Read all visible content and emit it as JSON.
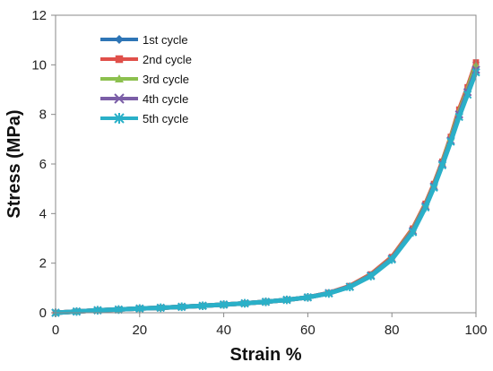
{
  "chart_data": {
    "type": "line",
    "title": "",
    "xlabel": "Strain %",
    "ylabel": "Stress (MPa)",
    "xlim": [
      0,
      100
    ],
    "ylim": [
      0,
      12
    ],
    "xticks": [
      0,
      20,
      40,
      60,
      80,
      100
    ],
    "yticks": [
      0,
      2,
      4,
      6,
      8,
      10,
      12
    ],
    "grid": false,
    "legend_position": "top-left",
    "x": [
      0,
      5,
      10,
      15,
      20,
      25,
      30,
      35,
      40,
      45,
      50,
      55,
      60,
      65,
      70,
      75,
      80,
      85,
      88,
      90,
      92,
      94,
      96,
      98,
      100
    ],
    "series": [
      {
        "name": "1st cycle",
        "color": "#2e75b6",
        "marker": "diamond",
        "values": [
          0,
          0.05,
          0.1,
          0.13,
          0.17,
          0.2,
          0.24,
          0.28,
          0.33,
          0.38,
          0.44,
          0.52,
          0.62,
          0.78,
          1.05,
          1.5,
          2.2,
          3.3,
          4.3,
          5.1,
          6.0,
          7.0,
          8.1,
          9.0,
          10.1
        ]
      },
      {
        "name": "2nd cycle",
        "color": "#e0504a",
        "marker": "square",
        "values": [
          0,
          0.05,
          0.1,
          0.13,
          0.17,
          0.2,
          0.24,
          0.28,
          0.33,
          0.38,
          0.44,
          0.52,
          0.62,
          0.8,
          1.08,
          1.55,
          2.25,
          3.4,
          4.4,
          5.2,
          6.1,
          7.1,
          8.2,
          9.1,
          10.1
        ]
      },
      {
        "name": "3rd cycle",
        "color": "#8cc04e",
        "marker": "triangle",
        "values": [
          0,
          0.05,
          0.1,
          0.13,
          0.17,
          0.2,
          0.24,
          0.28,
          0.33,
          0.38,
          0.44,
          0.52,
          0.62,
          0.79,
          1.06,
          1.52,
          2.2,
          3.35,
          4.35,
          5.15,
          6.05,
          7.05,
          8.1,
          9.0,
          10.0
        ]
      },
      {
        "name": "4th cycle",
        "color": "#7b5ea7",
        "marker": "x",
        "values": [
          0,
          0.05,
          0.1,
          0.13,
          0.17,
          0.2,
          0.24,
          0.28,
          0.33,
          0.38,
          0.44,
          0.52,
          0.62,
          0.79,
          1.05,
          1.5,
          2.18,
          3.3,
          4.3,
          5.1,
          6.0,
          6.95,
          8.0,
          8.9,
          9.8
        ]
      },
      {
        "name": "5th cycle",
        "color": "#2ab0c8",
        "marker": "star",
        "values": [
          0,
          0.05,
          0.1,
          0.13,
          0.17,
          0.2,
          0.24,
          0.28,
          0.33,
          0.38,
          0.44,
          0.52,
          0.62,
          0.78,
          1.04,
          1.48,
          2.15,
          3.25,
          4.25,
          5.05,
          5.95,
          6.9,
          7.9,
          8.8,
          9.7
        ]
      }
    ]
  }
}
